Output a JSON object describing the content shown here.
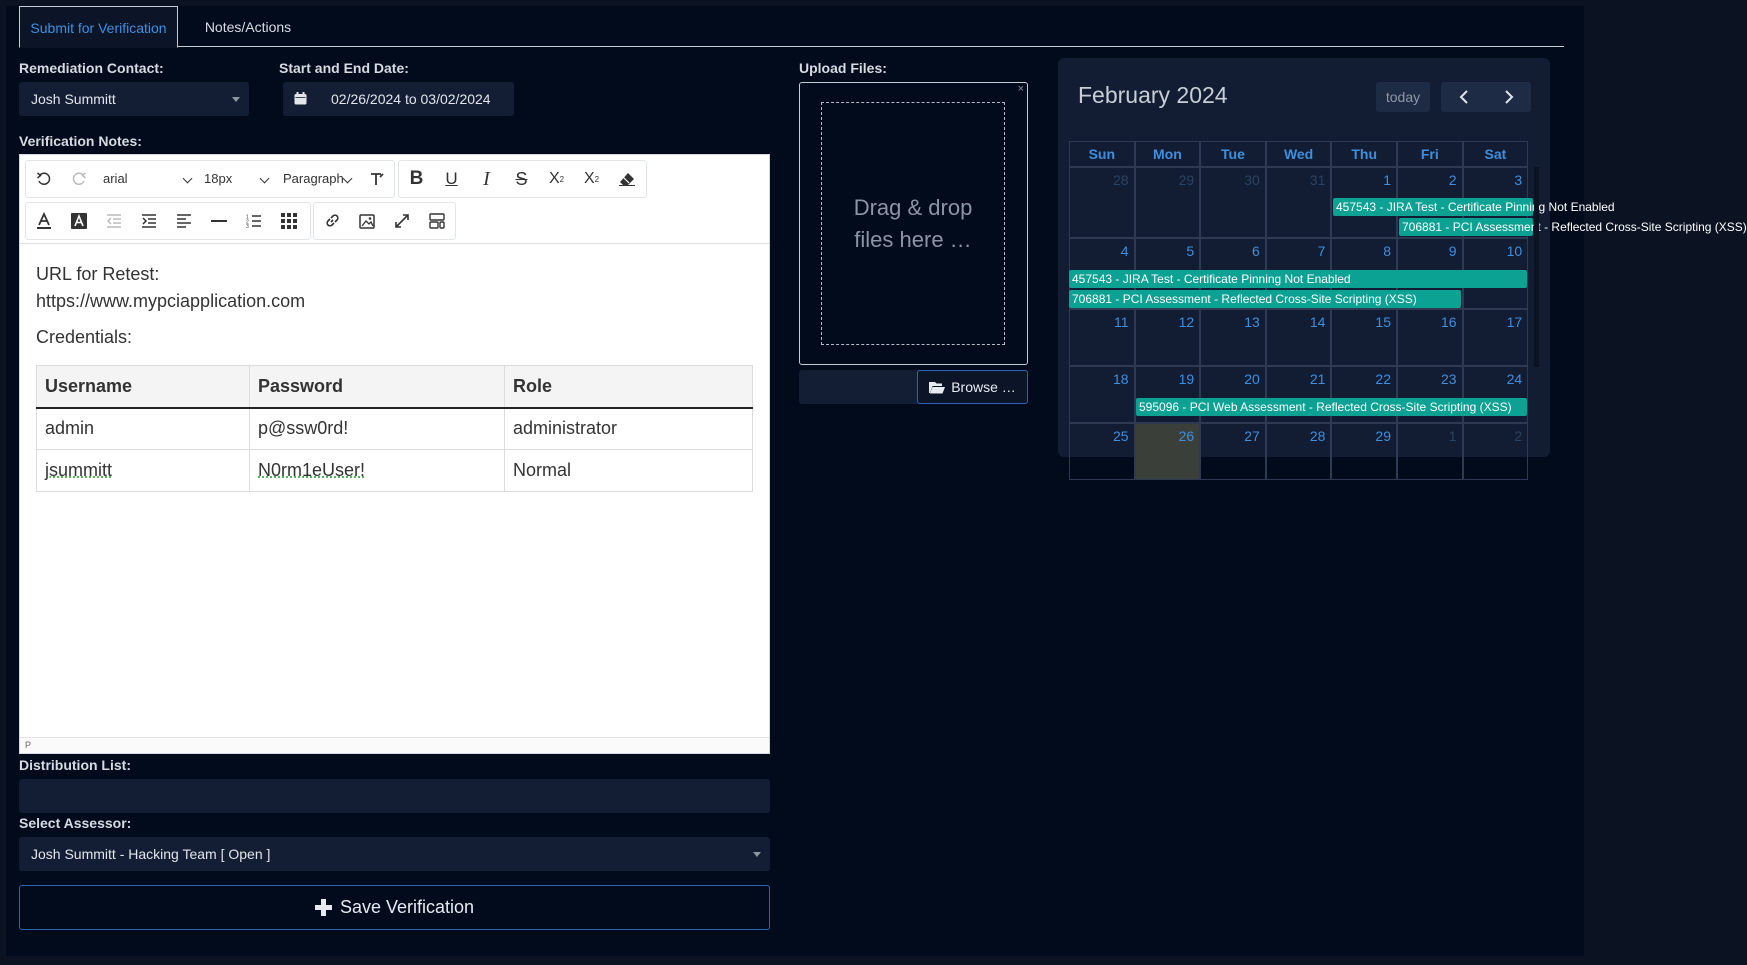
{
  "tabs": [
    {
      "label": "Submit for Verification",
      "active": true
    },
    {
      "label": "Notes/Actions",
      "active": false
    }
  ],
  "form": {
    "remediation_contact_label": "Remediation Contact:",
    "remediation_contact_value": "Josh Summitt",
    "date_label": "Start and End Date:",
    "date_value": "02/26/2024 to 03/02/2024",
    "notes_label": "Verification Notes:",
    "distribution_label": "Distribution List:",
    "distribution_value": "",
    "assessor_label": "Select Assessor:",
    "assessor_value": "Josh Summitt - Hacking Team [ Open ]",
    "save_label": "Save Verification"
  },
  "editor": {
    "font_family": "arial",
    "font_size": "18px",
    "block_format": "Paragraph",
    "status_path": "P",
    "line1": "URL for Retest:",
    "line2": "https://www.mypciapplication.com",
    "line3": "Credentials:",
    "table": {
      "headers": [
        "Username",
        "Password",
        "Role"
      ],
      "rows": [
        [
          "admin",
          "p@ssw0rd!",
          "administrator"
        ],
        [
          "jsummitt",
          "N0rm1eUser!",
          "Normal"
        ]
      ]
    }
  },
  "upload": {
    "label": "Upload Files:",
    "drop_line1": "Drag & drop",
    "drop_line2": "files here …",
    "close": "×",
    "browse_label": "Browse …"
  },
  "calendar": {
    "title": "February 2024",
    "today_label": "today",
    "weekdays": [
      "Sun",
      "Mon",
      "Tue",
      "Wed",
      "Thu",
      "Fri",
      "Sat"
    ],
    "weeks": [
      [
        "28",
        "29",
        "30",
        "31",
        "1",
        "2",
        "3"
      ],
      [
        "4",
        "5",
        "6",
        "7",
        "8",
        "9",
        "10"
      ],
      [
        "11",
        "12",
        "13",
        "14",
        "15",
        "16",
        "17"
      ],
      [
        "18",
        "19",
        "20",
        "21",
        "22",
        "23",
        "24"
      ],
      [
        "25",
        "26",
        "27",
        "28",
        "29",
        "1",
        "2"
      ]
    ],
    "events": {
      "w1a": "457543 - JIRA Test - Certificate Pinning Not Enabled",
      "w1b": "706881 - PCI Assessment - Reflected Cross-Site Scripting (XSS)",
      "w2a": "457543 - JIRA Test - Certificate Pinning Not Enabled",
      "w2b": "706881 - PCI Assessment - Reflected Cross-Site Scripting (XSS)",
      "w4a": "595096 - PCI Web Assessment - Reflected Cross-Site Scripting (XSS)"
    },
    "colors": {
      "event": "#0ba193",
      "day_number": "#3d8fe0",
      "today_cell": "#3b3f3a"
    }
  }
}
